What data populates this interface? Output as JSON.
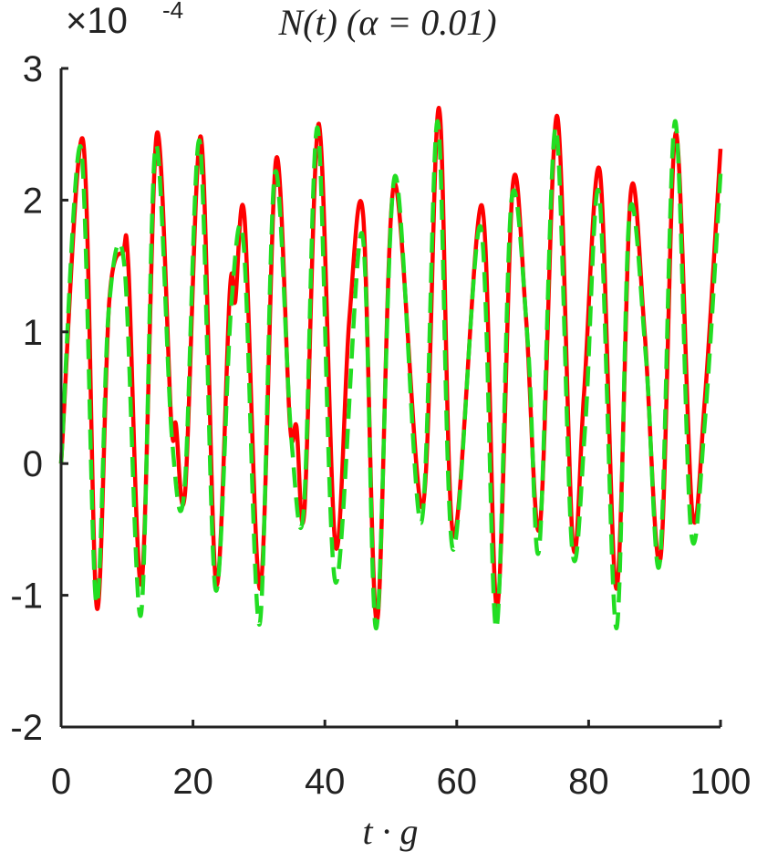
{
  "chart_data": {
    "type": "line",
    "title": "N(t) (α = 0.01)",
    "y_multiplier": {
      "base": "×10",
      "exponent": "-4"
    },
    "xlabel": "t · g",
    "xlim": [
      0,
      100
    ],
    "xticks": [
      0,
      20,
      40,
      60,
      80,
      100
    ],
    "ylim": [
      -2,
      3
    ],
    "yticks": [
      -2,
      -1,
      0,
      1,
      2,
      3
    ],
    "series": [
      {
        "color": "#ff0000",
        "dash": false,
        "x": [
          0,
          3.3,
          5.4,
          7.3,
          9.4,
          10.2,
          12.2,
          14.5,
          16.7,
          17.4,
          18.8,
          21.2,
          23.5,
          25.6,
          26.4,
          27.8,
          30.2,
          32.6,
          34.7,
          35.7,
          36.9,
          39.1,
          41.6,
          43.7,
          45.8,
          47.9,
          50.5,
          54.8,
          57.3,
          59.5,
          63.8,
          66.1,
          68.5,
          70.5,
          72.6,
          75.2,
          77.6,
          79.3,
          81.7,
          84.2,
          86.4,
          88.5,
          90.9,
          93.2,
          95.7,
          97.6,
          100
        ],
        "values": [
          0,
          2.46,
          -1.09,
          1.23,
          1.61,
          1.5,
          -0.91,
          2.5,
          0.32,
          0.3,
          -0.22,
          2.48,
          -0.91,
          1.32,
          1.23,
          1.88,
          -0.95,
          2.31,
          0.3,
          0.28,
          -0.36,
          2.58,
          -0.62,
          1.09,
          1.89,
          -1.2,
          2.12,
          -0.33,
          2.7,
          -0.55,
          1.96,
          -1.09,
          2.11,
          1.11,
          -0.48,
          2.64,
          -0.6,
          0.53,
          2.22,
          -0.95,
          2.06,
          0.99,
          -0.72,
          2.51,
          -0.36,
          0.47,
          2.39
        ]
      },
      {
        "color": "#22dd22",
        "dash": true,
        "x": [
          0,
          3.0,
          5.3,
          7.2,
          9.6,
          12.1,
          14.3,
          16.8,
          18.7,
          21.0,
          23.4,
          25.8,
          27.7,
          30.1,
          32.4,
          34.9,
          36.8,
          38.9,
          41.6,
          45.6,
          47.8,
          50.6,
          54.6,
          57.1,
          59.4,
          63.6,
          66.0,
          68.3,
          70.8,
          72.5,
          75.0,
          77.5,
          79.5,
          81.6,
          84.2,
          86.2,
          88.7,
          90.8,
          93.1,
          95.5,
          97.6,
          100
        ],
        "values": [
          0,
          2.4,
          -1.05,
          1.15,
          1.5,
          -1.15,
          2.4,
          0.2,
          -0.2,
          2.45,
          -0.95,
          1.2,
          1.65,
          -1.22,
          2.2,
          0.2,
          -0.35,
          2.55,
          -0.9,
          1.75,
          -1.25,
          2.18,
          -0.45,
          2.6,
          -0.65,
          1.8,
          -1.25,
          2.0,
          0.9,
          -0.65,
          2.55,
          -0.65,
          0.3,
          2.05,
          -1.25,
          1.9,
          0.8,
          -0.75,
          2.6,
          -0.5,
          0.3,
          2.2
        ]
      }
    ]
  }
}
